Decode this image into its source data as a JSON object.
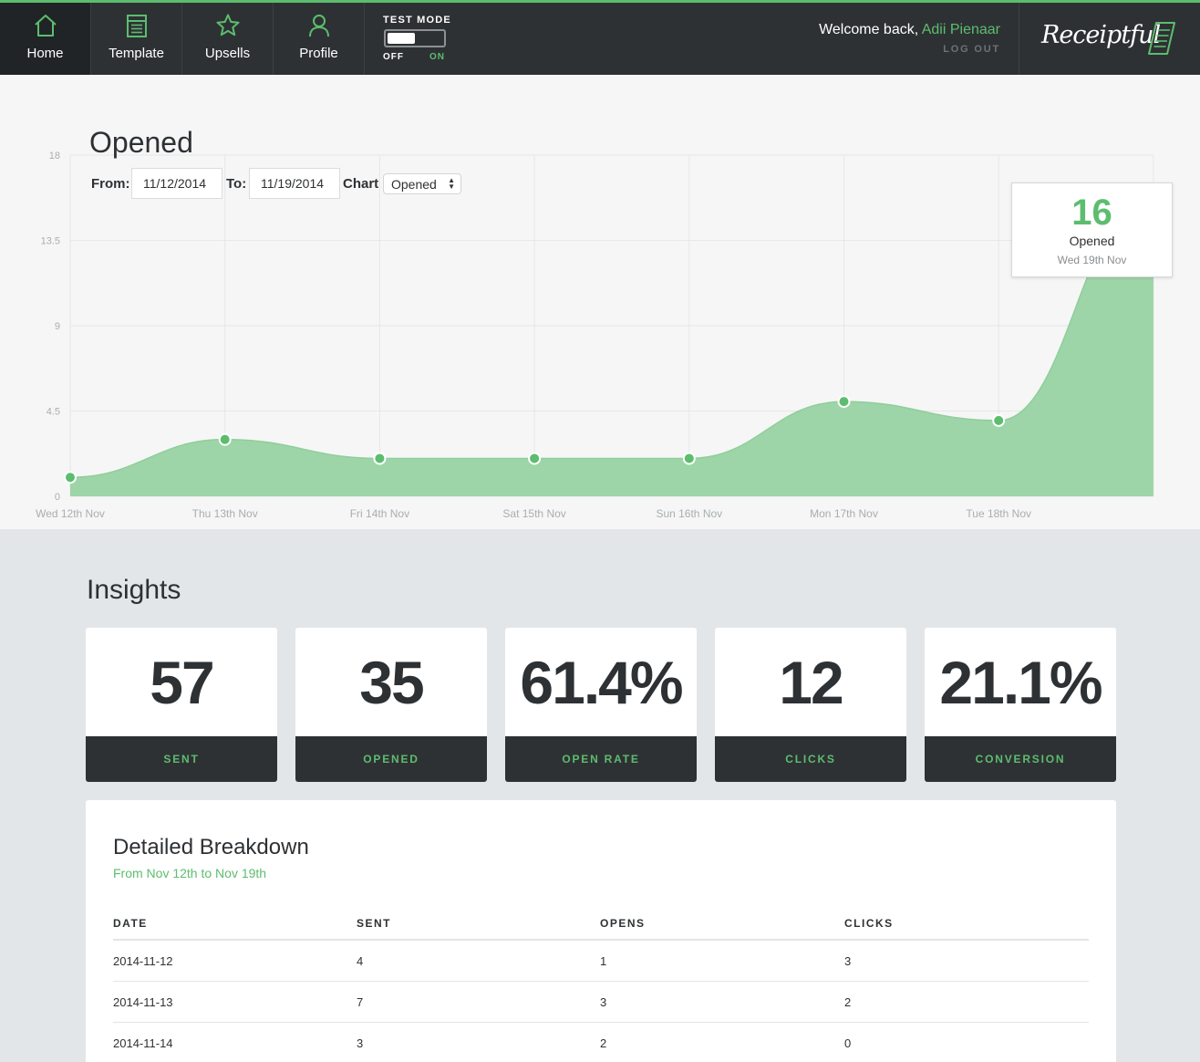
{
  "nav": {
    "items": [
      {
        "label": "Home",
        "icon": "home-icon",
        "active": true
      },
      {
        "label": "Template",
        "icon": "template-icon",
        "active": false
      },
      {
        "label": "Upsells",
        "icon": "star-icon",
        "active": false
      },
      {
        "label": "Profile",
        "icon": "user-icon",
        "active": false
      }
    ],
    "test_mode": {
      "title": "TEST MODE",
      "off": "OFF",
      "on": "ON"
    },
    "welcome_text": "Welcome back,",
    "user_name": "Adii Pienaar",
    "logout": "LOG OUT",
    "brand": "Receiptful",
    "accent_color": "#5cbd6e",
    "bar_color": "#2e3134"
  },
  "chart_header": {
    "title": "Opened",
    "from_label": "From:",
    "from_value": "11/12/2014",
    "to_label": "To:",
    "to_value": "11/19/2014",
    "chart_label": "Chart",
    "chart_select": "Opened"
  },
  "tooltip": {
    "value": "16",
    "label": "Opened",
    "date": "Wed 19th Nov"
  },
  "chart_data": {
    "type": "area",
    "x": [
      "Wed 12th Nov",
      "Thu 13th Nov",
      "Fri 14th Nov",
      "Sat 15th Nov",
      "Sun 16th Nov",
      "Mon 17th Nov",
      "Tue 18th Nov",
      "Wed 19th Nov"
    ],
    "x_tick_labels": [
      "Wed 12th Nov",
      "Thu 13th Nov",
      "Fri 14th Nov",
      "Sat 15th Nov",
      "Sun 16th Nov",
      "Mon 17th Nov",
      "Tue 18th Nov"
    ],
    "series": [
      {
        "values": [
          1,
          3,
          2,
          2,
          2,
          5,
          4,
          16
        ]
      }
    ],
    "ylim": [
      0,
      18
    ],
    "y_ticks": [
      "0",
      "4.5",
      "9",
      "13.5",
      "18"
    ],
    "grid": true,
    "fill_color": "#9dd5a8",
    "point_color": "#5cbd6e"
  },
  "insights": {
    "title": "Insights",
    "cards": [
      {
        "value": "57",
        "label": "SENT"
      },
      {
        "value": "35",
        "label": "OPENED"
      },
      {
        "value": "61.4%",
        "label": "OPEN RATE"
      },
      {
        "value": "12",
        "label": "CLICKS"
      },
      {
        "value": "21.1%",
        "label": "CONVERSION"
      }
    ]
  },
  "breakdown": {
    "title": "Detailed Breakdown",
    "subtitle": "From Nov 12th to Nov 19th",
    "columns": [
      "DATE",
      "SENT",
      "OPENS",
      "CLICKS"
    ],
    "rows": [
      [
        "2014-11-12",
        "4",
        "1",
        "3"
      ],
      [
        "2014-11-13",
        "7",
        "3",
        "2"
      ],
      [
        "2014-11-14",
        "3",
        "2",
        "0"
      ]
    ]
  }
}
